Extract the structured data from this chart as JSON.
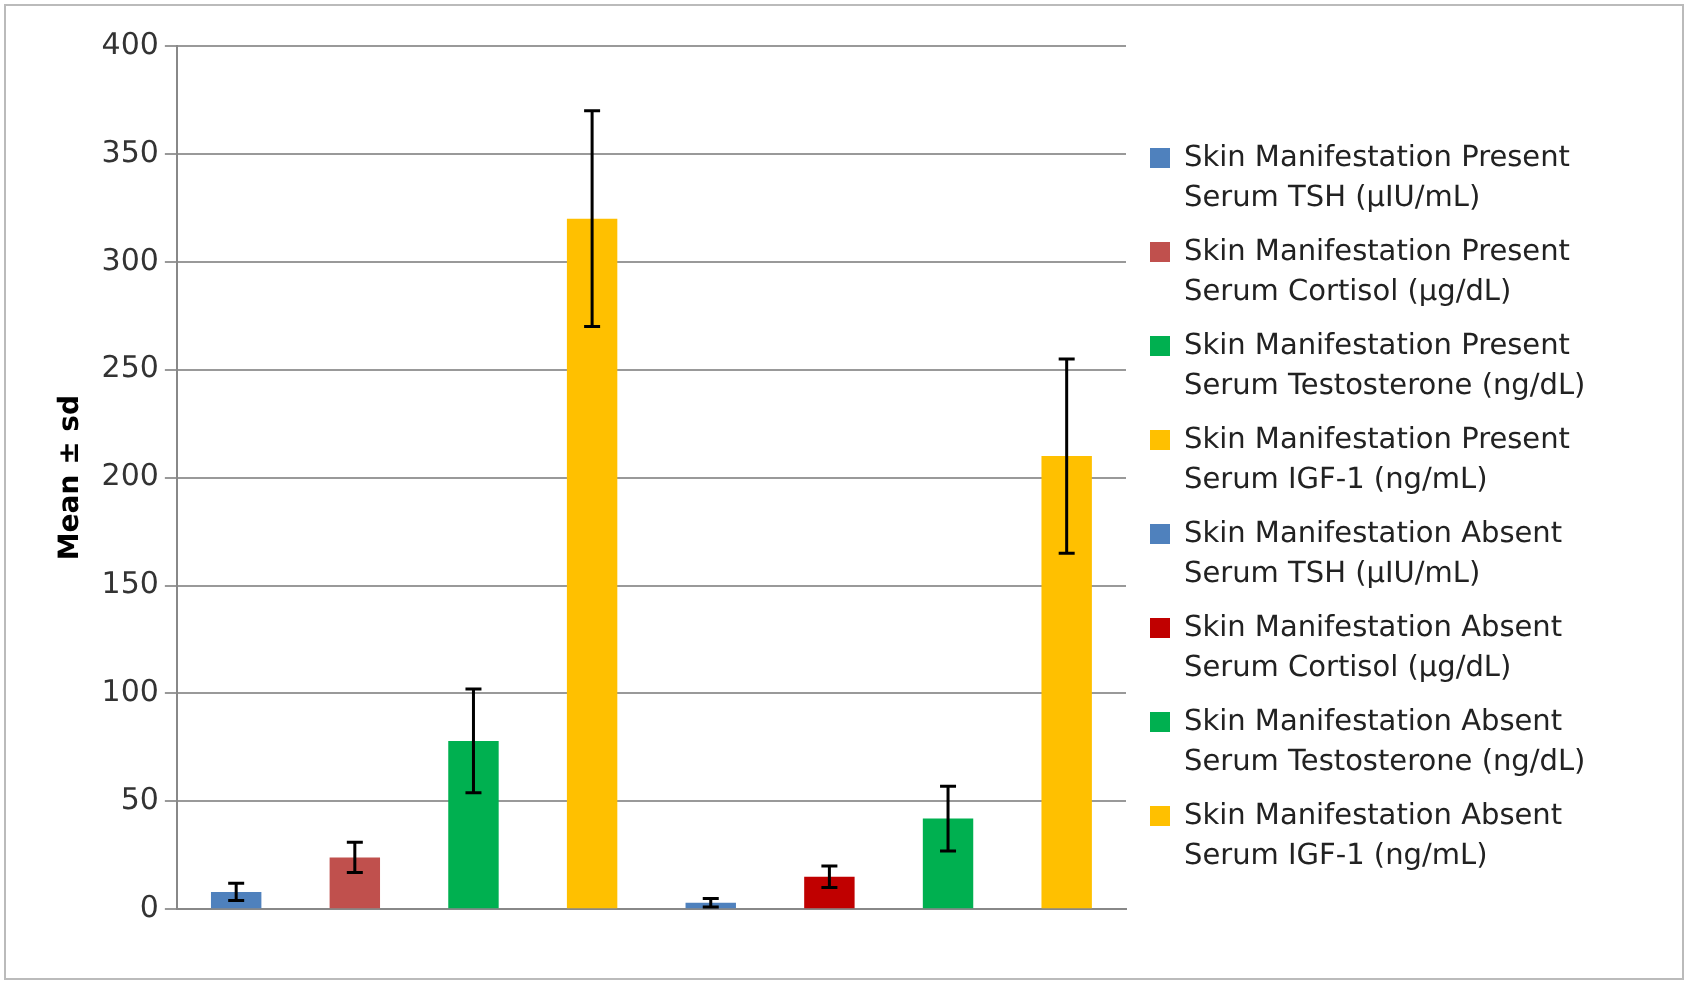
{
  "chart_data": {
    "type": "bar",
    "ylabel": "Mean ± sd",
    "categories": [
      null,
      null,
      null,
      null,
      null,
      null,
      null,
      null
    ],
    "series": [
      {
        "name": "Skin Manifestation Present Serum TSH (µIU/mL)",
        "color": "#4f81bd",
        "values": [
          8,
          null,
          null,
          null,
          null,
          null,
          null,
          null
        ],
        "errors": [
          4,
          null,
          null,
          null,
          null,
          null,
          null,
          null
        ]
      },
      {
        "name": "Skin Manifestation Present Serum Cortisol (µg/dL)",
        "color": "#c0504d",
        "values": [
          null,
          24,
          null,
          null,
          null,
          null,
          null,
          null
        ],
        "errors": [
          null,
          7,
          null,
          null,
          null,
          null,
          null,
          null
        ]
      },
      {
        "name": "Skin Manifestation Present Serum Testosterone (ng/dL)",
        "color": "#00b050",
        "values": [
          null,
          null,
          78,
          null,
          null,
          null,
          null,
          null
        ],
        "errors": [
          null,
          null,
          24,
          null,
          null,
          null,
          null,
          null
        ]
      },
      {
        "name": "Skin Manifestation Present Serum IGF-1 (ng/mL)",
        "color": "#ffc000",
        "values": [
          null,
          null,
          null,
          320,
          null,
          null,
          null,
          null
        ],
        "errors": [
          null,
          null,
          null,
          50,
          null,
          null,
          null,
          null
        ]
      },
      {
        "name": "Skin Manifestation Absent Serum TSH (µIU/mL)",
        "color": "#4f81bd",
        "values": [
          null,
          null,
          null,
          null,
          3,
          null,
          null,
          null
        ],
        "errors": [
          null,
          null,
          null,
          null,
          2,
          null,
          null,
          null
        ]
      },
      {
        "name": "Skin Manifestation Absent Serum Cortisol (µg/dL)",
        "color": "#c00000",
        "values": [
          null,
          null,
          null,
          null,
          null,
          15,
          null,
          null
        ],
        "errors": [
          null,
          null,
          null,
          null,
          null,
          5,
          null,
          null
        ]
      },
      {
        "name": "Skin Manifestation Absent Serum Testosterone (ng/dL)",
        "color": "#00b050",
        "values": [
          null,
          null,
          null,
          null,
          null,
          null,
          42,
          null
        ],
        "errors": [
          null,
          null,
          null,
          null,
          null,
          null,
          15,
          null
        ]
      },
      {
        "name": "Skin Manifestation Absent Serum IGF-1 (ng/mL)",
        "color": "#ffc000",
        "values": [
          null,
          null,
          null,
          null,
          null,
          null,
          null,
          210
        ],
        "errors": [
          null,
          null,
          null,
          null,
          null,
          null,
          null,
          45
        ]
      }
    ],
    "ylim": [
      0,
      400
    ],
    "yticks": [
      0,
      50,
      100,
      150,
      200,
      250,
      300,
      350,
      400
    ],
    "grid": "y",
    "legend": "right"
  }
}
